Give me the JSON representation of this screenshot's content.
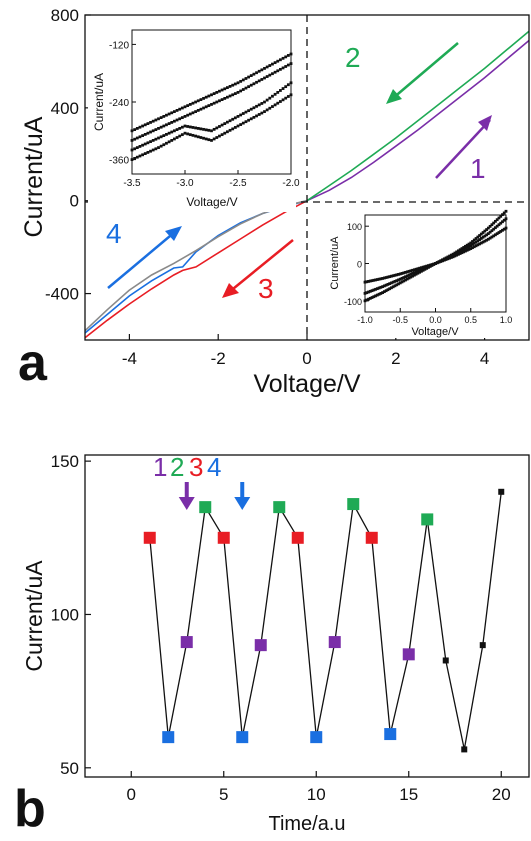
{
  "colors": {
    "c1": "#7a2ea8",
    "c2": "#1faa55",
    "c3": "#e81d24",
    "c4": "#1a6fe0",
    "black": "#111111",
    "grey": "#8a8a8a"
  },
  "panel_a": {
    "letter": "a",
    "arrow_labels": [
      "1",
      "2",
      "3",
      "4"
    ]
  },
  "panel_b": {
    "letter": "b",
    "header_labels": [
      "1",
      "2",
      "3",
      "4"
    ]
  },
  "chart_data": [
    {
      "type": "line",
      "name": "panel-a-iv",
      "xlabel": "Voltage/V",
      "ylabel": "Current/uA",
      "xlim": [
        -5,
        5
      ],
      "ylim": [
        -600,
        800
      ],
      "xticks": [
        -4,
        -2,
        0,
        2,
        4
      ],
      "xtick_labels": [
        "-4",
        "-2",
        "0",
        "2",
        "4"
      ],
      "yticks": [
        -400,
        0,
        400,
        800
      ],
      "ytick_labels": [
        "-400",
        "0",
        "400",
        "800"
      ],
      "grid": false,
      "series": [
        {
          "color": "purple",
          "x": [
            0,
            0.5,
            1,
            1.5,
            2,
            2.5,
            3,
            3.5,
            4,
            4.5,
            5
          ],
          "y": [
            0,
            45,
            100,
            165,
            235,
            305,
            380,
            455,
            530,
            610,
            690
          ]
        },
        {
          "color": "green",
          "x": [
            5,
            4.5,
            4,
            3.5,
            3,
            2.5,
            2,
            1.5,
            1,
            0.5,
            0
          ],
          "y": [
            730,
            650,
            570,
            495,
            420,
            345,
            270,
            200,
            130,
            65,
            0
          ]
        },
        {
          "color": "red",
          "x": [
            0,
            -0.5,
            -1,
            -1.5,
            -2,
            -2.5,
            -2.8,
            -3,
            -3.5,
            -4,
            -4.5,
            -5
          ],
          "y": [
            0,
            -50,
            -105,
            -165,
            -225,
            -285,
            -300,
            -320,
            -380,
            -445,
            -515,
            -590
          ]
        },
        {
          "color": "blue",
          "x": [
            -5,
            -4.5,
            -4,
            -3.5,
            -3,
            -2.8,
            -2.5,
            -2,
            -1.5,
            -1,
            -0.5,
            0
          ],
          "y": [
            -570,
            -490,
            -410,
            -345,
            -290,
            -285,
            -220,
            -150,
            -95,
            -55,
            -25,
            0
          ]
        },
        {
          "color": "grey",
          "x": [
            -5,
            -4.5,
            -4,
            -3.5,
            -3,
            -2.5,
            -2,
            -1.5,
            -1,
            -0.5,
            0
          ],
          "y": [
            -560,
            -470,
            -385,
            -320,
            -270,
            -215,
            -155,
            -100,
            -55,
            -22,
            0
          ]
        }
      ],
      "annotations": [
        {
          "text": "1",
          "color": "purple",
          "direction": "up-right"
        },
        {
          "text": "2",
          "color": "green",
          "direction": "down-left"
        },
        {
          "text": "3",
          "color": "red",
          "direction": "down-left"
        },
        {
          "text": "4",
          "color": "blue",
          "direction": "up-right"
        }
      ]
    },
    {
      "type": "scatter",
      "name": "panel-a-inset-top",
      "xlabel": "Voltage/V",
      "ylabel": "Current/uA",
      "xlim": [
        -3.5,
        -2.0
      ],
      "ylim": [
        -390,
        -90
      ],
      "xticks": [
        -3.5,
        -3.0,
        -2.5,
        -2.0
      ],
      "xtick_labels": [
        "-3.5",
        "-3.0",
        "-2.5",
        "-2.0"
      ],
      "yticks": [
        -120,
        -240,
        -360
      ],
      "ytick_labels": [
        "-120",
        "-240",
        "-360"
      ],
      "series": [
        {
          "x": [
            -3.5,
            -3.25,
            -3.0,
            -2.75,
            -2.5,
            -2.25,
            -2.0
          ],
          "y": [
            -300,
            -275,
            -250,
            -225,
            -200,
            -170,
            -140
          ]
        },
        {
          "x": [
            -3.5,
            -3.25,
            -3.0,
            -2.75,
            -2.5,
            -2.25,
            -2.0
          ],
          "y": [
            -320,
            -295,
            -270,
            -245,
            -220,
            -190,
            -160
          ]
        },
        {
          "x": [
            -3.5,
            -3.25,
            -3.0,
            -2.75,
            -2.5,
            -2.25,
            -2.0
          ],
          "y": [
            -340,
            -315,
            -290,
            -300,
            -270,
            -240,
            -200
          ]
        },
        {
          "x": [
            -3.5,
            -3.25,
            -3.0,
            -2.75,
            -2.5,
            -2.25,
            -2.0
          ],
          "y": [
            -360,
            -335,
            -305,
            -320,
            -290,
            -260,
            -225
          ]
        }
      ]
    },
    {
      "type": "scatter",
      "name": "panel-a-inset-bottom",
      "xlabel": "Voltage/V",
      "ylabel": "Current/uA",
      "xlim": [
        -1.0,
        1.0
      ],
      "ylim": [
        -130,
        130
      ],
      "xticks": [
        -1.0,
        -0.5,
        0.0,
        0.5,
        1.0
      ],
      "xtick_labels": [
        "-1.0",
        "-0.5",
        "0.0",
        "0.5",
        "1.0"
      ],
      "yticks": [
        -100,
        0,
        100
      ],
      "ytick_labels": [
        "-100",
        "0",
        "100"
      ],
      "series": [
        {
          "x": [
            -1.0,
            -0.75,
            -0.5,
            -0.25,
            0.0,
            0.25,
            0.5,
            0.75,
            1.0
          ],
          "y": [
            -50,
            -40,
            -28,
            -14,
            0,
            25,
            55,
            95,
            140
          ]
        },
        {
          "x": [
            -1.0,
            -0.75,
            -0.5,
            -0.25,
            0.0,
            0.25,
            0.5,
            0.75,
            1.0
          ],
          "y": [
            -80,
            -62,
            -42,
            -20,
            0,
            22,
            48,
            80,
            120
          ]
        },
        {
          "x": [
            -1.0,
            -0.75,
            -0.5,
            -0.25,
            0.0,
            0.25,
            0.5,
            0.75,
            1.0
          ],
          "y": [
            -100,
            -78,
            -52,
            -26,
            0,
            18,
            40,
            65,
            95
          ]
        }
      ]
    },
    {
      "type": "line",
      "name": "panel-b-time",
      "xlabel": "Time/a.u",
      "ylabel": "Current/uA",
      "xlim": [
        -2.5,
        21.5
      ],
      "ylim": [
        47,
        152
      ],
      "xticks": [
        0,
        5,
        10,
        15,
        20
      ],
      "xtick_labels": [
        "0",
        "5",
        "10",
        "15",
        "20"
      ],
      "yticks": [
        50,
        100,
        150
      ],
      "ytick_labels": [
        "50",
        "100",
        "150"
      ],
      "x": [
        1,
        2,
        3,
        4,
        5,
        6,
        7,
        8,
        9,
        10,
        11,
        12,
        13,
        14,
        15,
        16,
        17,
        18,
        19,
        20
      ],
      "y": [
        125,
        60,
        91,
        135,
        125,
        60,
        90,
        135,
        125,
        60,
        91,
        136,
        125,
        61,
        87,
        131,
        85,
        56,
        90,
        140
      ],
      "point_colors": [
        "red",
        "blue",
        "purple",
        "green",
        "red",
        "blue",
        "purple",
        "green",
        "red",
        "blue",
        "purple",
        "green",
        "red",
        "blue",
        "purple",
        "green",
        "black",
        "black",
        "black",
        "black"
      ],
      "marker_sizes": [
        "large",
        "large",
        "large",
        "large",
        "large",
        "large",
        "large",
        "large",
        "large",
        "large",
        "large",
        "large",
        "large",
        "large",
        "large",
        "large",
        "small",
        "small",
        "small",
        "small"
      ],
      "markers": [
        {
          "label": "1",
          "color": "purple",
          "x": 3
        },
        {
          "label": "4",
          "color": "blue",
          "x": 6
        }
      ]
    }
  ]
}
